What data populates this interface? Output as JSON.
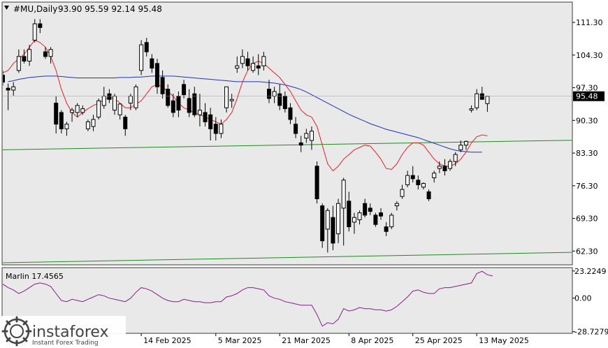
{
  "header": {
    "symbol_line": "#MU,Daily",
    "ohlc_line": "93.90 95.59 92.14 95.48"
  },
  "colors": {
    "background": "#ffffff",
    "pane": "#e9e9e9",
    "bull": "#ffffff",
    "bear": "#000000",
    "ma_fast": "#e8202a",
    "ma_slow": "#2233bb",
    "trendline": "#1f8a1f",
    "oscillator": "#8b1c8b",
    "price_label_bg": "#000000"
  },
  "chart_data": [
    {
      "type": "candlestick",
      "symbol": "#MU",
      "timeframe": "Daily",
      "ylim": [
        59.5,
        115.5
      ],
      "y_ticks": [
        111.3,
        104.3,
        97.3,
        90.3,
        83.3,
        76.3,
        69.3,
        62.3
      ],
      "y_tick_labels": [
        "111.30",
        "104.30",
        "97.30",
        "90.30",
        "83.30",
        "76.30",
        "69.30",
        "62.30"
      ],
      "current_price": 95.48,
      "current_price_label": "95.48",
      "x_labels": [
        "14 Feb 2025",
        "5 Mar 2025",
        "21 Mar 2025",
        "8 Apr 2025",
        "25 Apr 2025",
        "13 May 2025"
      ],
      "x_label_index": [
        26,
        40,
        52,
        65,
        77,
        89
      ],
      "ohlc": [
        [
          100.0,
          101.0,
          97.8,
          98.5
        ],
        [
          97.2,
          98.2,
          92.5,
          96.8
        ],
        [
          96.8,
          98.5,
          95.6,
          97.5
        ],
        [
          101.0,
          105.5,
          100.5,
          104.0
        ],
        [
          104.0,
          105.5,
          102.5,
          103.0
        ],
        [
          103.0,
          106.5,
          102.0,
          105.5
        ],
        [
          107.5,
          112.0,
          107.0,
          111.0
        ],
        [
          111.0,
          112.0,
          109.0,
          110.2
        ],
        [
          105.0,
          106.0,
          103.5,
          104.0
        ],
        [
          104.0,
          106.0,
          102.5,
          105.5
        ],
        [
          94.0,
          95.5,
          87.5,
          89.5
        ],
        [
          92.0,
          92.5,
          87.5,
          88.5
        ],
        [
          88.5,
          90.0,
          87.0,
          89.5
        ],
        [
          92.0,
          93.0,
          90.0,
          92.5
        ],
        [
          92.0,
          94.0,
          91.0,
          93.5
        ],
        [
          92.0,
          93.5,
          91.5,
          92.8
        ],
        [
          88.5,
          90.5,
          88.0,
          90.0
        ],
        [
          89.0,
          91.5,
          88.0,
          90.5
        ],
        [
          91.0,
          95.0,
          90.5,
          94.5
        ],
        [
          93.5,
          97.5,
          92.8,
          95.5
        ],
        [
          96.0,
          97.0,
          94.0,
          94.8
        ],
        [
          92.5,
          96.0,
          91.5,
          95.5
        ],
        [
          91.5,
          94.0,
          90.5,
          93.8
        ],
        [
          91.0,
          91.5,
          87.0,
          88.5
        ],
        [
          94.0,
          96.0,
          92.5,
          95.5
        ],
        [
          93.0,
          98.0,
          92.5,
          97.5
        ],
        [
          101.0,
          107.5,
          100.0,
          106.5
        ],
        [
          107.0,
          108.0,
          104.0,
          105.0
        ],
        [
          103.5,
          104.5,
          100.5,
          101.5
        ],
        [
          102.5,
          103.5,
          96.0,
          97.5
        ],
        [
          99.5,
          101.0,
          95.0,
          96.0
        ],
        [
          97.0,
          98.0,
          93.0,
          93.5
        ],
        [
          94.5,
          96.0,
          91.0,
          92.0
        ],
        [
          95.5,
          96.5,
          91.0,
          92.5
        ],
        [
          98.0,
          99.0,
          95.0,
          95.8
        ],
        [
          95.0,
          97.0,
          91.0,
          92.0
        ],
        [
          96.0,
          97.5,
          91.0,
          91.5
        ],
        [
          91.5,
          96.0,
          89.0,
          92.5
        ],
        [
          92.0,
          94.0,
          89.0,
          90.0
        ],
        [
          91.5,
          93.0,
          86.0,
          88.5
        ],
        [
          89.5,
          91.0,
          86.0,
          87.5
        ],
        [
          87.5,
          90.5,
          86.5,
          89.5
        ],
        [
          93.0,
          97.5,
          92.0,
          97.5
        ],
        [
          94.5,
          96.0,
          93.0,
          94.8
        ],
        [
          101.5,
          104.0,
          100.5,
          102.0
        ],
        [
          102.5,
          105.5,
          101.5,
          104.0
        ],
        [
          103.5,
          105.0,
          101.0,
          102.0
        ],
        [
          101.0,
          104.0,
          100.5,
          102.5
        ],
        [
          102.0,
          104.5,
          100.0,
          101.5
        ],
        [
          102.0,
          105.0,
          101.0,
          104.0
        ],
        [
          97.0,
          99.0,
          94.0,
          95.0
        ],
        [
          95.5,
          97.5,
          94.0,
          96.5
        ],
        [
          96.0,
          98.0,
          92.5,
          93.5
        ],
        [
          95.5,
          96.5,
          92.0,
          92.8
        ],
        [
          93.0,
          94.0,
          89.5,
          90.5
        ],
        [
          89.5,
          91.0,
          86.5,
          87.5
        ],
        [
          85.5,
          87.0,
          83.5,
          85.0
        ],
        [
          86.5,
          88.5,
          85.5,
          87.5
        ],
        [
          86.0,
          89.0,
          84.0,
          88.0
        ],
        [
          80.5,
          81.5,
          72.5,
          73.5
        ],
        [
          72.0,
          72.5,
          63.0,
          64.5
        ],
        [
          67.0,
          71.5,
          62.0,
          71.0
        ],
        [
          69.5,
          72.0,
          62.5,
          64.0
        ],
        [
          66.0,
          73.5,
          64.0,
          72.5
        ],
        [
          71.5,
          78.0,
          63.5,
          77.5
        ],
        [
          73.0,
          75.0,
          66.5,
          67.5
        ],
        [
          68.5,
          70.5,
          66.0,
          69.5
        ],
        [
          69.0,
          71.0,
          68.0,
          70.5
        ],
        [
          72.5,
          73.5,
          69.5,
          70.0
        ],
        [
          71.5,
          72.5,
          70.0,
          70.8
        ],
        [
          70.0,
          70.5,
          67.5,
          68.0
        ],
        [
          70.5,
          71.5,
          69.0,
          69.8
        ],
        [
          67.5,
          68.5,
          65.5,
          66.5
        ],
        [
          67.5,
          70.5,
          67.0,
          70.0
        ],
        [
          72.0,
          73.0,
          71.0,
          72.5
        ],
        [
          74.0,
          76.5,
          73.5,
          75.5
        ],
        [
          76.5,
          79.5,
          76.0,
          78.5
        ],
        [
          78.5,
          80.5,
          77.0,
          77.8
        ],
        [
          77.5,
          78.5,
          75.5,
          76.5
        ],
        [
          76.0,
          77.0,
          75.5,
          76.8
        ],
        [
          75.0,
          75.5,
          73.0,
          73.5
        ],
        [
          78.0,
          79.5,
          77.0,
          79.0
        ],
        [
          80.0,
          81.5,
          79.0,
          80.5
        ],
        [
          80.5,
          82.0,
          78.5,
          79.5
        ],
        [
          80.0,
          82.0,
          79.5,
          81.5
        ],
        [
          81.5,
          83.5,
          80.5,
          83.0
        ],
        [
          84.0,
          86.0,
          83.5,
          85.0
        ],
        [
          85.0,
          86.0,
          84.0,
          85.8
        ],
        [
          92.5,
          93.5,
          92.0,
          92.8
        ],
        [
          93.0,
          97.0,
          92.5,
          96.0
        ],
        [
          96.0,
          97.5,
          95.0,
          94.8
        ],
        [
          93.9,
          95.59,
          92.14,
          95.48
        ]
      ],
      "ma_fast": [
        100.5,
        101.0,
        102.5,
        103.5,
        104.5,
        106.0,
        107.5,
        107.0,
        106.0,
        104.0,
        101.0,
        97.0,
        94.0,
        92.0,
        91.0,
        92.0,
        92.8,
        93.5,
        94.0,
        94.8,
        95.2,
        95.0,
        94.0,
        93.0,
        93.0,
        93.8,
        94.5,
        96.0,
        97.5,
        98.0,
        97.5,
        96.5,
        95.5,
        94.0,
        93.0,
        92.5,
        92.0,
        91.5,
        91.0,
        90.5,
        90.0,
        89.5,
        90.5,
        92.0,
        95.0,
        98.5,
        101.0,
        102.5,
        103.0,
        102.5,
        101.5,
        100.5,
        99.5,
        98.0,
        96.5,
        94.5,
        92.5,
        91.5,
        91.0,
        89.0,
        85.0,
        81.0,
        79.5,
        80.5,
        82.0,
        83.0,
        84.0,
        84.5,
        85.0,
        84.8,
        83.5,
        82.0,
        80.0,
        79.8,
        81.0,
        83.0,
        84.5,
        85.5,
        85.5,
        85.0,
        83.5,
        82.0,
        81.0,
        80.5,
        80.5,
        81.0,
        82.0,
        83.5,
        85.5,
        86.8,
        87.2,
        87.0
      ],
      "ma_slow_start": 1,
      "ma_slow": [
        98.6,
        98.8,
        99.1,
        99.3,
        99.5,
        99.6,
        99.7,
        99.8,
        99.8,
        99.8,
        99.7,
        99.6,
        99.5,
        99.4,
        99.4,
        99.4,
        99.4,
        99.4,
        99.4,
        99.4,
        99.4,
        99.5,
        99.5,
        99.5,
        99.6,
        99.6,
        99.7,
        99.8,
        99.8,
        99.8,
        99.8,
        99.8,
        99.7,
        99.6,
        99.5,
        99.4,
        99.3,
        99.2,
        99.1,
        99.0,
        98.9,
        98.8,
        98.7,
        98.6,
        98.6,
        98.6,
        98.6,
        98.6,
        98.5,
        98.4,
        98.3,
        98.1,
        97.9,
        97.6,
        97.3,
        96.9,
        96.4,
        95.8,
        95.2,
        94.6,
        94.0,
        93.4,
        92.8,
        92.2,
        91.6,
        91.1,
        90.6,
        90.1,
        89.6,
        89.2,
        88.8,
        88.4,
        88.1,
        87.8,
        87.5,
        87.2,
        86.9,
        86.6,
        86.2,
        85.8,
        85.4,
        85.0,
        84.6,
        84.2,
        83.9,
        83.7,
        83.6,
        83.5,
        83.5,
        83.5
      ],
      "trendlines": [
        {
          "from": [
            0,
            84.0
          ],
          "to": [
            120,
            86.3
          ]
        },
        {
          "from": [
            0,
            59.8
          ],
          "to": [
            120,
            62.3
          ]
        }
      ]
    },
    {
      "type": "line",
      "title": "Marlin 17.4565",
      "ylim": [
        -29.5,
        25.5
      ],
      "y_ticks": [
        23.2249,
        0.0,
        -28.7279
      ],
      "y_tick_labels": [
        "23.2249",
        "0.00",
        "-28.7279"
      ],
      "values": [
        12.0,
        9.0,
        7.0,
        4.0,
        6.0,
        9.0,
        12.0,
        13.0,
        12.0,
        10.0,
        4.0,
        -2.0,
        -3.0,
        -1.0,
        -2.0,
        -3.0,
        -1.0,
        1.0,
        3.0,
        2.0,
        0.0,
        -1.0,
        -2.0,
        -3.0,
        0.0,
        5.0,
        9.0,
        8.0,
        6.0,
        3.0,
        0.0,
        -2.0,
        -3.0,
        -3.0,
        -1.0,
        -2.0,
        -3.0,
        -3.0,
        -4.0,
        -4.0,
        -3.0,
        -3.0,
        1.0,
        2.0,
        4.0,
        7.0,
        9.0,
        9.0,
        8.0,
        7.0,
        2.0,
        0.0,
        -1.0,
        -3.0,
        -4.0,
        -5.0,
        -6.0,
        -6.0,
        -6.0,
        -14.0,
        -24.0,
        -21.0,
        -22.0,
        -18.0,
        -9.0,
        -11.0,
        -10.0,
        -8.0,
        -9.0,
        -9.0,
        -10.0,
        -10.0,
        -11.0,
        -10.0,
        -7.0,
        -3.0,
        1.0,
        6.0,
        7.0,
        5.0,
        4.0,
        4.0,
        8.0,
        9.0,
        9.0,
        10.0,
        11.0,
        12.0,
        13.0,
        21.0,
        23.0,
        20.0,
        19.0
      ]
    }
  ],
  "watermark": {
    "brand": "instaforex",
    "tagline": "Instant Forex Trading"
  }
}
